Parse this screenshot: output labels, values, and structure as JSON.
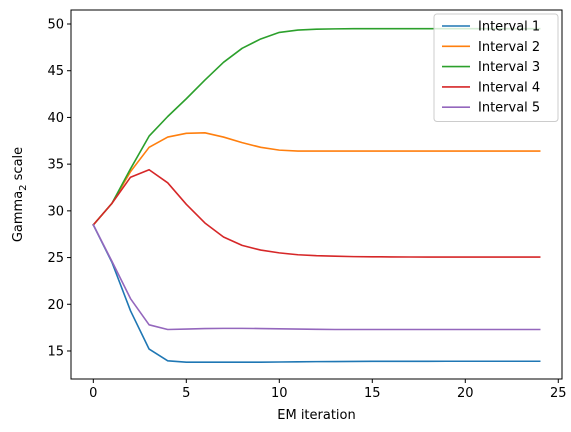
{
  "chart_data": {
    "type": "line",
    "xlabel": "EM iteration",
    "ylabel": "Gamma",
    "ylabel_subscript": "2",
    "ylabel_suffix": " scale",
    "xlim": [
      -1.2,
      25.2
    ],
    "ylim": [
      12,
      51.5
    ],
    "xticks": [
      0,
      5,
      10,
      15,
      20,
      25
    ],
    "yticks": [
      15,
      20,
      25,
      30,
      35,
      40,
      45,
      50
    ],
    "grid": false,
    "legend_position": "upper right",
    "x": [
      0,
      1,
      2,
      3,
      4,
      5,
      6,
      7,
      8,
      9,
      10,
      11,
      12,
      13,
      14,
      15,
      16,
      17,
      18,
      19,
      20,
      21,
      22,
      23,
      24
    ],
    "series": [
      {
        "name": "Interval 1",
        "color": "#1f77b4",
        "values": [
          28.5,
          24.5,
          19.3,
          15.2,
          13.95,
          13.8,
          13.8,
          13.8,
          13.8,
          13.8,
          13.82,
          13.84,
          13.86,
          13.87,
          13.88,
          13.89,
          13.89,
          13.89,
          13.89,
          13.9,
          13.9,
          13.9,
          13.9,
          13.9,
          13.9
        ]
      },
      {
        "name": "Interval 2",
        "color": "#ff7f0e",
        "values": [
          28.5,
          30.8,
          34.2,
          36.8,
          37.9,
          38.3,
          38.35,
          37.9,
          37.3,
          36.8,
          36.5,
          36.4,
          36.4,
          36.4,
          36.4,
          36.4,
          36.4,
          36.4,
          36.4,
          36.4,
          36.4,
          36.4,
          36.4,
          36.4,
          36.4
        ]
      },
      {
        "name": "Interval 3",
        "color": "#2ca02c",
        "values": [
          28.5,
          30.8,
          34.5,
          38.0,
          40.1,
          42.0,
          44.0,
          45.9,
          47.4,
          48.4,
          49.1,
          49.35,
          49.45,
          49.48,
          49.5,
          49.5,
          49.5,
          49.5,
          49.5,
          49.5,
          49.5,
          49.5,
          49.5,
          49.5,
          49.5
        ]
      },
      {
        "name": "Interval 4",
        "color": "#d62728",
        "values": [
          28.5,
          30.8,
          33.6,
          34.4,
          33.0,
          30.7,
          28.7,
          27.2,
          26.3,
          25.8,
          25.5,
          25.3,
          25.2,
          25.15,
          25.1,
          25.08,
          25.07,
          25.06,
          25.05,
          25.05,
          25.05,
          25.05,
          25.05,
          25.05,
          25.05
        ]
      },
      {
        "name": "Interval 5",
        "color": "#9467bd",
        "values": [
          28.5,
          24.6,
          20.6,
          17.8,
          17.3,
          17.35,
          17.4,
          17.42,
          17.42,
          17.4,
          17.37,
          17.34,
          17.32,
          17.3,
          17.3,
          17.3,
          17.3,
          17.3,
          17.3,
          17.3,
          17.3,
          17.3,
          17.3,
          17.3,
          17.3
        ]
      }
    ]
  }
}
